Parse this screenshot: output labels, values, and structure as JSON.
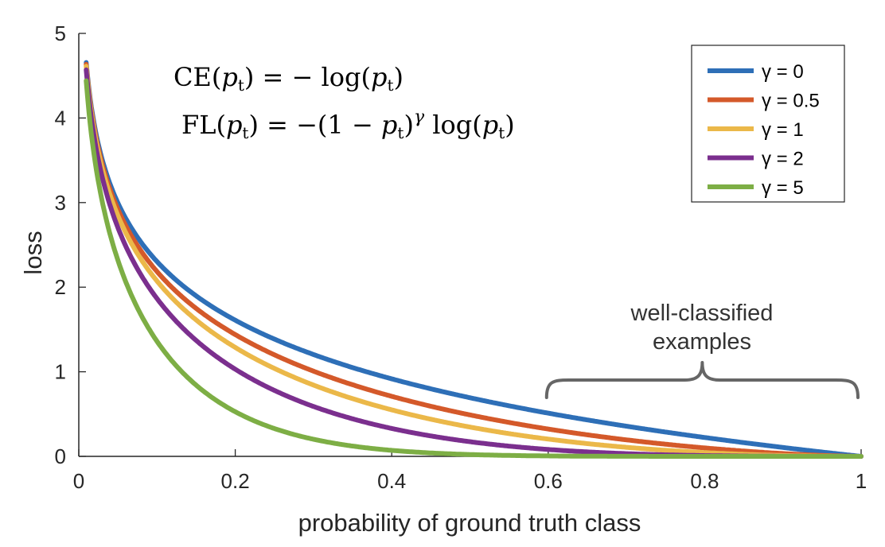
{
  "chart_data": {
    "type": "line",
    "title": "",
    "xlabel": "probability of ground truth class",
    "ylabel": "loss",
    "xlim": [
      0,
      1
    ],
    "ylim": [
      0,
      5
    ],
    "xticks": [
      {
        "value": 0,
        "label": "0"
      },
      {
        "value": 0.2,
        "label": "0.2"
      },
      {
        "value": 0.4,
        "label": "0.4"
      },
      {
        "value": 0.6,
        "label": "0.6"
      },
      {
        "value": 0.8,
        "label": "0.8"
      },
      {
        "value": 1,
        "label": "1"
      }
    ],
    "yticks": [
      {
        "value": 0,
        "label": "0"
      },
      {
        "value": 1,
        "label": "1"
      },
      {
        "value": 2,
        "label": "2"
      },
      {
        "value": 3,
        "label": "3"
      },
      {
        "value": 4,
        "label": "4"
      },
      {
        "value": 5,
        "label": "5"
      }
    ],
    "grid": false,
    "legend_position": "top-right",
    "x": [
      0.01,
      0.02,
      0.03,
      0.05,
      0.075,
      0.1,
      0.15,
      0.2,
      0.25,
      0.3,
      0.35,
      0.4,
      0.45,
      0.5,
      0.55,
      0.6,
      0.65,
      0.7,
      0.75,
      0.8,
      0.85,
      0.9,
      0.95,
      1.0
    ],
    "series": [
      {
        "name": "γ = 0",
        "gamma": 0,
        "color": "#2E6FB7",
        "values": [
          4.605,
          3.912,
          3.507,
          2.996,
          2.59,
          2.303,
          1.897,
          1.609,
          1.386,
          1.204,
          1.05,
          0.916,
          0.799,
          0.693,
          0.598,
          0.511,
          0.431,
          0.357,
          0.288,
          0.223,
          0.163,
          0.105,
          0.051,
          0.0
        ]
      },
      {
        "name": "γ = 0.5",
        "gamma": 0.5,
        "color": "#D4592A",
        "values": [
          4.582,
          3.873,
          3.454,
          2.92,
          2.494,
          2.184,
          1.749,
          1.439,
          1.2,
          1.007,
          0.846,
          0.709,
          0.592,
          0.49,
          0.401,
          0.323,
          0.255,
          0.196,
          0.144,
          0.1,
          0.063,
          0.033,
          0.011,
          0.0
        ]
      },
      {
        "name": "γ = 1",
        "gamma": 1,
        "color": "#EBB849",
        "values": [
          4.559,
          3.834,
          3.402,
          2.846,
          2.396,
          2.072,
          1.612,
          1.288,
          1.04,
          0.843,
          0.683,
          0.55,
          0.44,
          0.347,
          0.269,
          0.204,
          0.151,
          0.107,
          0.072,
          0.045,
          0.024,
          0.011,
          0.003,
          0.0
        ]
      },
      {
        "name": "γ = 2",
        "gamma": 2,
        "color": "#7B2F8E",
        "values": [
          4.513,
          3.757,
          3.3,
          2.704,
          2.216,
          1.865,
          1.371,
          1.03,
          0.78,
          0.59,
          0.444,
          0.33,
          0.242,
          0.173,
          0.121,
          0.082,
          0.053,
          0.032,
          0.018,
          0.009,
          0.004,
          0.001,
          0.0,
          0.0
        ]
      },
      {
        "name": "γ = 5",
        "gamma": 5,
        "color": "#7DAE45",
        "values": [
          4.379,
          3.532,
          3.01,
          2.322,
          1.74,
          1.36,
          0.842,
          0.527,
          0.329,
          0.202,
          0.121,
          0.071,
          0.04,
          0.022,
          0.011,
          0.005,
          0.002,
          0.001,
          0.0,
          0.0,
          0.0,
          0.0,
          0.0,
          0.0
        ]
      }
    ],
    "annotations": {
      "brace_label_line1": "well-classified",
      "brace_label_line2": "examples",
      "brace_x_range": [
        0.6,
        1.0
      ]
    }
  },
  "equations": {
    "ce_name": "CE",
    "fl_name": "FL",
    "pt_var": "p",
    "pt_sub": "t",
    "log": "log",
    "gamma": "γ"
  },
  "colors": {
    "axis": "#262626",
    "brace": "#666666"
  }
}
